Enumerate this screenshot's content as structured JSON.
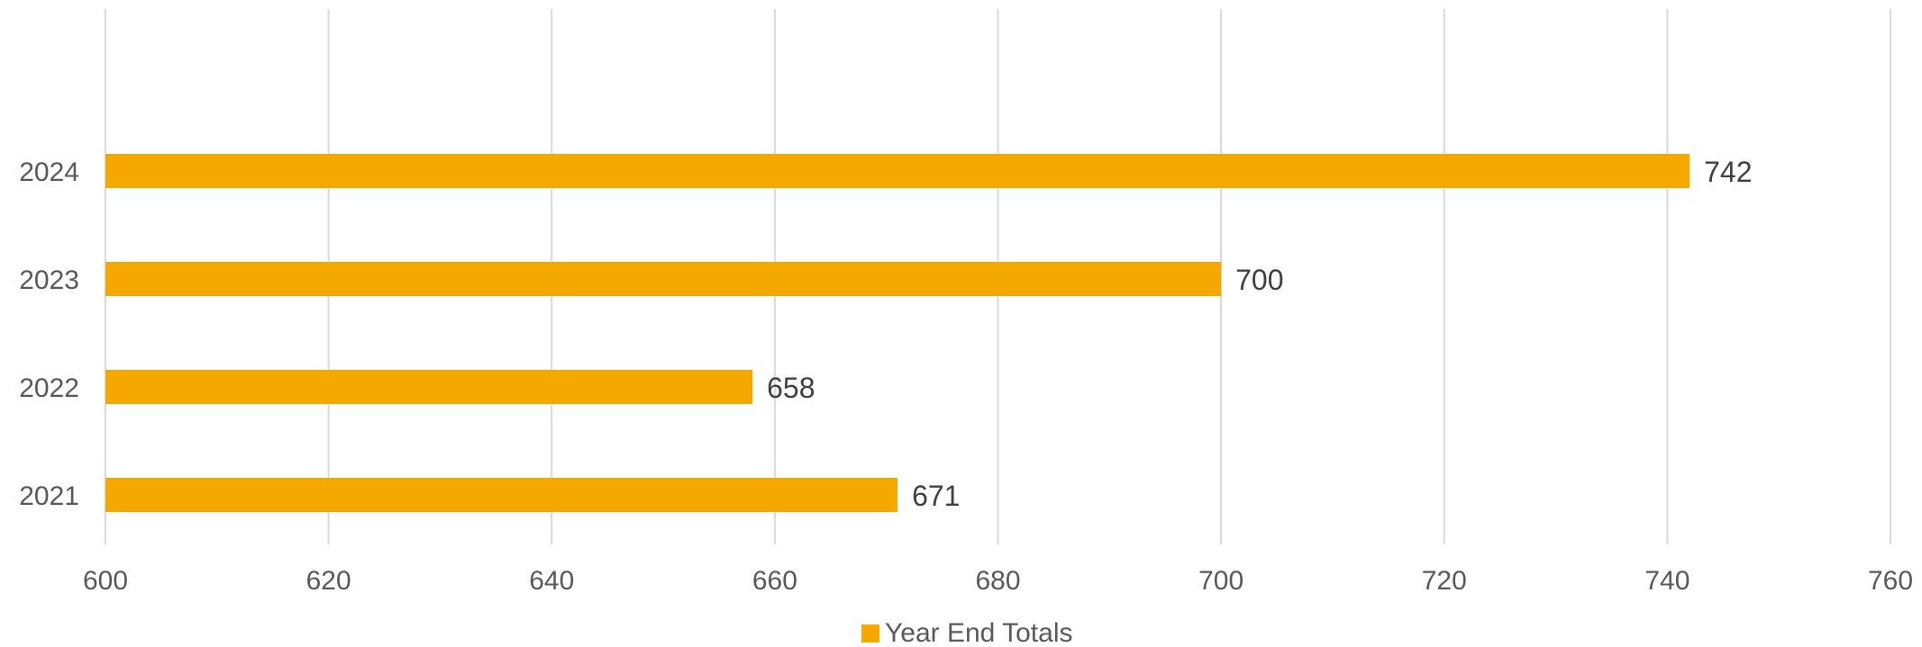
{
  "chart_data": {
    "type": "bar",
    "orientation": "horizontal",
    "categories": [
      "2021",
      "2022",
      "2023",
      "2024"
    ],
    "series": [
      {
        "name": "Year End Totals",
        "values": [
          671,
          658,
          700,
          742
        ]
      }
    ],
    "data_labels": [
      "671",
      "658",
      "700",
      "742"
    ],
    "x_ticks": [
      "600",
      "620",
      "640",
      "660",
      "680",
      "700",
      "720",
      "740",
      "760"
    ],
    "xlim": [
      600,
      760
    ],
    "grid": "vertical",
    "legend_position": "bottom",
    "color": "#F5A800"
  }
}
